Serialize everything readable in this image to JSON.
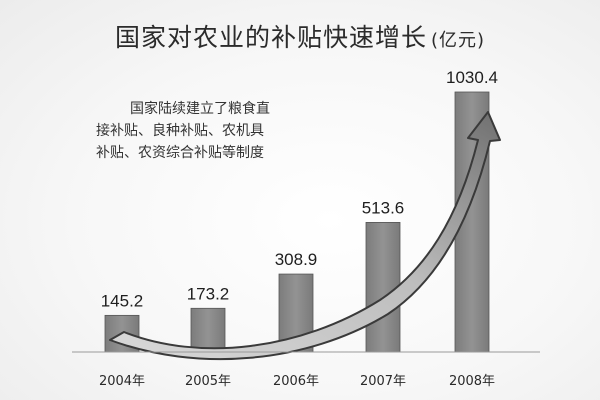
{
  "title": "国家对农业的补贴快速增长",
  "title_unit": "(亿元)",
  "annotation": {
    "lines": [
      "国家陆续建立了粮食直",
      "接补贴、良种补贴、农机具",
      "补贴、农资综合补贴等制度"
    ]
  },
  "colors": {
    "bar": "#8a8a8a",
    "bar_edge": "#555555",
    "arrow_dark": "#3a3a3a",
    "arrow_light": "#cfcfcf"
  },
  "chart_data": {
    "type": "bar",
    "title": "国家对农业的补贴快速增长(亿元)",
    "categories": [
      "2004年",
      "2005年",
      "2006年",
      "2007年",
      "2008年"
    ],
    "values": [
      145.2,
      173.2,
      308.9,
      513.6,
      1030.4
    ],
    "value_labels": [
      "145.2",
      "173.2",
      "308.9",
      "513.6",
      "1030.4"
    ],
    "xlabel": "",
    "ylabel": "",
    "ylim": [
      0,
      1100
    ],
    "grid": false,
    "legend": "none"
  }
}
